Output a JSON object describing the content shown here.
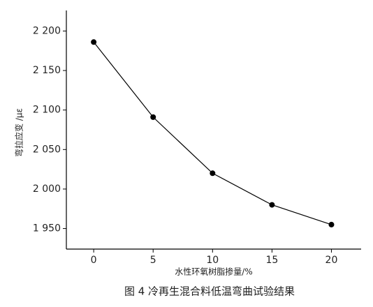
{
  "chart_data": {
    "type": "line",
    "caption": "图 4 冷再生混合料低温弯曲试验结果",
    "x_label": "水性环氧树脂掺量/%",
    "y_label": "弯拉应变 /με",
    "x": [
      0,
      5,
      10,
      15,
      20
    ],
    "series": [
      {
        "color": "#000000",
        "values": [
          2186,
          2091,
          2020,
          1980,
          1955
        ]
      }
    ],
    "xlim": [
      -2.3,
      22.5
    ],
    "xticks": [
      0,
      5,
      10,
      15,
      20
    ],
    "ylim": [
      1924,
      2226
    ],
    "yticks": [
      {
        "value": 1950,
        "label": "1 950"
      },
      {
        "value": 2000,
        "label": "2 000"
      },
      {
        "value": 2050,
        "label": "2 050"
      },
      {
        "value": 2100,
        "label": "2 100"
      },
      {
        "value": 2150,
        "label": "2 150"
      },
      {
        "value": 2200,
        "label": "2 200"
      }
    ],
    "grid": false
  }
}
